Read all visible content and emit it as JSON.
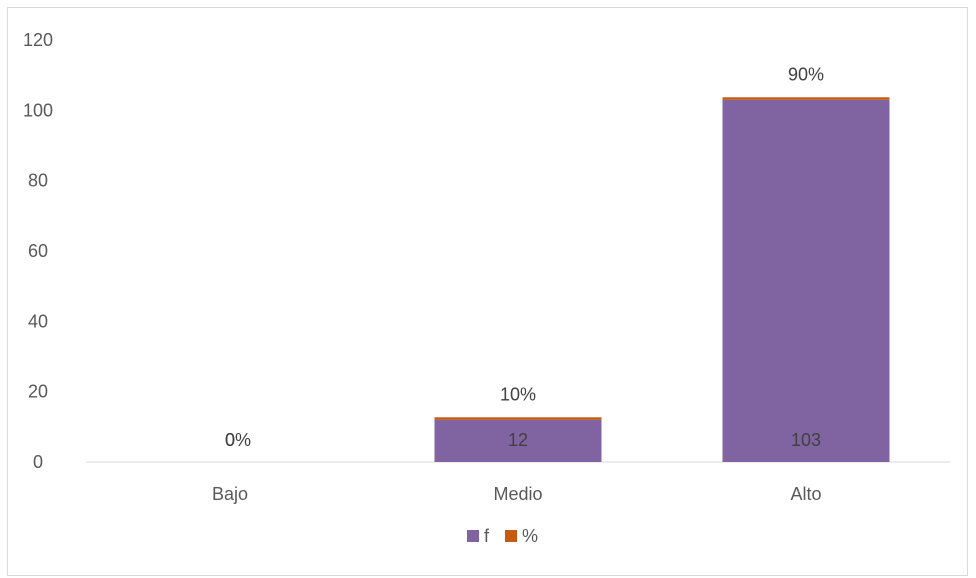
{
  "chart_data": {
    "type": "bar",
    "stacked": true,
    "categories": [
      "Bajo",
      "Medio",
      "Alto"
    ],
    "series": [
      {
        "name": "f",
        "values": [
          0,
          12,
          103
        ],
        "data_labels": [
          "0",
          "12",
          "103"
        ],
        "color": "#8064a2"
      },
      {
        "name": "%",
        "values": [
          0,
          0.1,
          0.9
        ],
        "data_labels": [
          "0%",
          "10%",
          "90%"
        ],
        "color": "#c55a11"
      }
    ],
    "ylim": [
      0,
      120
    ],
    "yticks": [
      "0",
      "20",
      "40",
      "60",
      "80",
      "100",
      "120"
    ],
    "grid": false,
    "legend": "bottom"
  }
}
